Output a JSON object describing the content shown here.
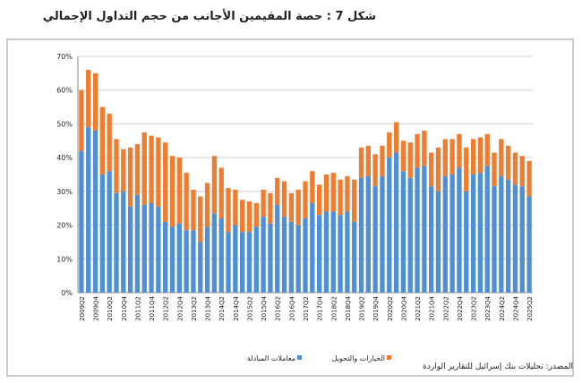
{
  "chart_data": {
    "type": "stacked_bar",
    "title": "شكل 7 : حصة المقيمين الأجانب من حجم التداول الإجمالي",
    "source": "المصدر: تحليلات بنك إسرائيل للتقارير الواردة",
    "categories": [
      "2009Q2",
      null,
      "2009Q4",
      null,
      "2010Q2",
      null,
      "2010Q4",
      null,
      "2011Q2",
      null,
      "2011Q4",
      null,
      "2012Q2",
      null,
      "2012Q4",
      null,
      "2013Q2",
      null,
      "2013Q4",
      null,
      "2014Q2",
      null,
      "2014Q4",
      null,
      "2015Q2",
      null,
      "2015Q4",
      null,
      "2016Q2",
      null,
      "2016Q4",
      null,
      "2017Q2",
      null,
      "2017Q4",
      null,
      "2018Q2",
      null,
      "2018Q4",
      null,
      "2019Q2",
      null,
      "2019Q4",
      null,
      "2020Q2",
      null,
      "2020Q4",
      null,
      "2021Q2",
      null,
      "2021Q4",
      null,
      "2022Q2",
      null,
      "2022Q4",
      null,
      "2023Q2",
      null,
      "2023Q4",
      null,
      "2024Q2",
      null,
      "2024Q4",
      null,
      "2025Q2"
    ],
    "series": [
      {
        "name": "معاملات المبادلة",
        "color": "#4f8fd6",
        "values": [
          42,
          49,
          48,
          35,
          36,
          29.5,
          30,
          25.5,
          29,
          26,
          26.5,
          25.5,
          21,
          19.5,
          20.5,
          18.5,
          18.5,
          15,
          19.5,
          23.5,
          22,
          18,
          20,
          18,
          18,
          19.5,
          22.5,
          20.5,
          26,
          22.5,
          21,
          20,
          22,
          26.5,
          23,
          24,
          24,
          23,
          24,
          21,
          34,
          34.5,
          31.5,
          34.5,
          40,
          41.5,
          36,
          34,
          37,
          37.5,
          31.5,
          30,
          34.5,
          35,
          37,
          30,
          35,
          35.5,
          37.5,
          31.5,
          34.5,
          33.5,
          32,
          31.5,
          28.5
        ]
      },
      {
        "name": "الخيارات والتحويل",
        "color": "#ee7d31",
        "values": [
          18,
          17,
          17,
          20,
          17,
          16,
          12.5,
          17.5,
          15,
          21.5,
          20,
          20.5,
          23.5,
          21,
          19.5,
          17,
          12,
          13.5,
          13,
          17,
          15,
          13,
          10.5,
          9.5,
          9,
          7,
          8,
          9,
          8,
          10.5,
          8.5,
          10.5,
          11,
          9.5,
          9,
          11,
          11.5,
          10.5,
          10.5,
          12.5,
          9,
          9,
          9.5,
          9,
          7.5,
          9,
          9,
          10.5,
          10,
          10.5,
          10,
          13,
          11,
          10.5,
          10,
          13,
          10.5,
          10.5,
          9.5,
          10,
          11,
          10,
          9.5,
          9,
          10.5
        ]
      }
    ],
    "ylim": [
      0,
      70
    ],
    "yticks": [
      {
        "value": 0,
        "label": "0%"
      },
      {
        "value": 10,
        "label": "10%"
      },
      {
        "value": 20,
        "label": "20%"
      },
      {
        "value": 30,
        "label": "30%"
      },
      {
        "value": 40,
        "label": "40%"
      },
      {
        "value": 50,
        "label": "50%"
      },
      {
        "value": 60,
        "label": "60%"
      },
      {
        "value": 70,
        "label": "70%"
      }
    ],
    "grid": true
  }
}
